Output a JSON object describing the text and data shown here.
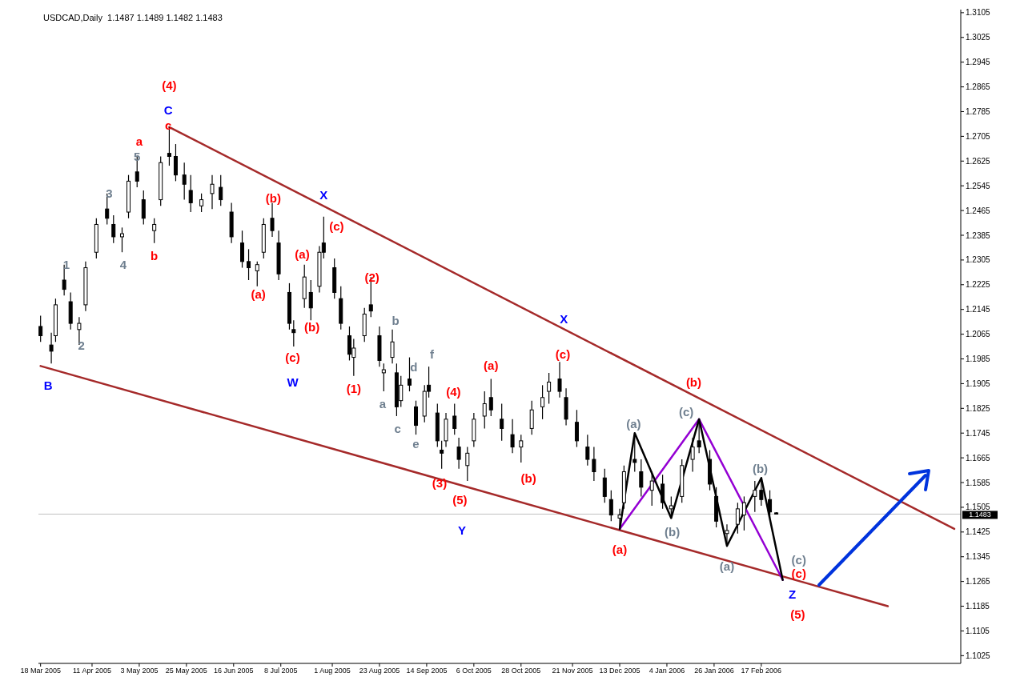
{
  "chart_data": {
    "type": "candlestick",
    "title": "USDCAD,Daily  1.1487 1.1489 1.1482 1.1483",
    "x": [
      "2005-03-18",
      "2005-03-23",
      "2005-03-25",
      "2005-03-29",
      "2005-04-01",
      "2005-04-05",
      "2005-04-08",
      "2005-04-13",
      "2005-04-18",
      "2005-04-21",
      "2005-04-25",
      "2005-04-28",
      "2005-05-02",
      "2005-05-05",
      "2005-05-10",
      "2005-05-13",
      "2005-05-17",
      "2005-05-20",
      "2005-05-24",
      "2005-05-27",
      "2005-06-01",
      "2005-06-06",
      "2005-06-10",
      "2005-06-15",
      "2005-06-20",
      "2005-06-23",
      "2005-06-27",
      "2005-06-30",
      "2005-07-04",
      "2005-07-07",
      "2005-07-12",
      "2005-07-14",
      "2005-07-19",
      "2005-07-22",
      "2005-07-26",
      "2005-07-28",
      "2005-08-02",
      "2005-08-05",
      "2005-08-09",
      "2005-08-11",
      "2005-08-16",
      "2005-08-19",
      "2005-08-23",
      "2005-08-25",
      "2005-08-29",
      "2005-08-31",
      "2005-09-02",
      "2005-09-06",
      "2005-09-09",
      "2005-09-13",
      "2005-09-15",
      "2005-09-19",
      "2005-09-21",
      "2005-09-23",
      "2005-09-27",
      "2005-09-29",
      "2005-10-03",
      "2005-10-06",
      "2005-10-11",
      "2005-10-14",
      "2005-10-19",
      "2005-10-24",
      "2005-10-28",
      "2005-11-02",
      "2005-11-07",
      "2005-11-10",
      "2005-11-15",
      "2005-11-18",
      "2005-11-23",
      "2005-11-28",
      "2005-12-01",
      "2005-12-06",
      "2005-12-09",
      "2005-12-13",
      "2005-12-15",
      "2005-12-20",
      "2005-12-23",
      "2005-12-28",
      "2006-01-02",
      "2006-01-06",
      "2006-01-11",
      "2006-01-16",
      "2006-01-19",
      "2006-01-24",
      "2006-01-27",
      "2006-02-01",
      "2006-02-06",
      "2006-02-09",
      "2006-02-14",
      "2006-02-17",
      "2006-02-21",
      "2006-02-24"
    ],
    "ohlc": [
      [
        1.209,
        1.2125,
        1.204,
        1.206
      ],
      [
        1.203,
        1.207,
        1.197,
        1.201
      ],
      [
        1.206,
        1.218,
        1.204,
        1.216
      ],
      [
        1.224,
        1.229,
        1.219,
        1.221
      ],
      [
        1.217,
        1.22,
        1.208,
        1.21
      ],
      [
        1.208,
        1.212,
        1.203,
        1.21
      ],
      [
        1.216,
        1.23,
        1.214,
        1.228
      ],
      [
        1.233,
        1.244,
        1.231,
        1.242
      ],
      [
        1.247,
        1.252,
        1.242,
        1.244
      ],
      [
        1.242,
        1.245,
        1.236,
        1.238
      ],
      [
        1.238,
        1.241,
        1.233,
        1.239
      ],
      [
        1.246,
        1.258,
        1.244,
        1.256
      ],
      [
        1.259,
        1.264,
        1.254,
        1.256
      ],
      [
        1.25,
        1.253,
        1.242,
        1.244
      ],
      [
        1.24,
        1.244,
        1.236,
        1.242
      ],
      [
        1.25,
        1.264,
        1.248,
        1.262
      ],
      [
        1.265,
        1.2735,
        1.261,
        1.264
      ],
      [
        1.264,
        1.268,
        1.256,
        1.258
      ],
      [
        1.258,
        1.262,
        1.25,
        1.255
      ],
      [
        1.253,
        1.258,
        1.246,
        1.249
      ],
      [
        1.248,
        1.252,
        1.246,
        1.25
      ],
      [
        1.252,
        1.258,
        1.247,
        1.255
      ],
      [
        1.254,
        1.258,
        1.248,
        1.25
      ],
      [
        1.246,
        1.249,
        1.236,
        1.238
      ],
      [
        1.236,
        1.24,
        1.228,
        1.23
      ],
      [
        1.23,
        1.234,
        1.224,
        1.228
      ],
      [
        1.227,
        1.23,
        1.222,
        1.229
      ],
      [
        1.233,
        1.244,
        1.231,
        1.242
      ],
      [
        1.244,
        1.249,
        1.238,
        1.24
      ],
      [
        1.236,
        1.24,
        1.224,
        1.226
      ],
      [
        1.22,
        1.223,
        1.208,
        1.21
      ],
      [
        1.208,
        1.211,
        1.2025,
        1.207
      ],
      [
        1.218,
        1.229,
        1.215,
        1.225
      ],
      [
        1.22,
        1.224,
        1.211,
        1.215
      ],
      [
        1.222,
        1.235,
        1.22,
        1.233
      ],
      [
        1.236,
        1.2445,
        1.231,
        1.233
      ],
      [
        1.228,
        1.231,
        1.218,
        1.22
      ],
      [
        1.218,
        1.222,
        1.208,
        1.21
      ],
      [
        1.206,
        1.209,
        1.198,
        1.2
      ],
      [
        1.199,
        1.205,
        1.193,
        1.202
      ],
      [
        1.206,
        1.215,
        1.204,
        1.213
      ],
      [
        1.216,
        1.225,
        1.212,
        1.214
      ],
      [
        1.206,
        1.209,
        1.196,
        1.198
      ],
      [
        1.194,
        1.197,
        1.188,
        1.195
      ],
      [
        1.199,
        1.208,
        1.197,
        1.204
      ],
      [
        1.194,
        1.197,
        1.18,
        1.183
      ],
      [
        1.185,
        1.193,
        1.183,
        1.19
      ],
      [
        1.192,
        1.199,
        1.188,
        1.19
      ],
      [
        1.183,
        1.185,
        1.174,
        1.177
      ],
      [
        1.18,
        1.19,
        1.178,
        1.188
      ],
      [
        1.19,
        1.196,
        1.186,
        1.188
      ],
      [
        1.181,
        1.184,
        1.17,
        1.172
      ],
      [
        1.169,
        1.172,
        1.163,
        1.168
      ],
      [
        1.172,
        1.181,
        1.17,
        1.179
      ],
      [
        1.18,
        1.184,
        1.174,
        1.176
      ],
      [
        1.17,
        1.173,
        1.163,
        1.166
      ],
      [
        1.164,
        1.17,
        1.159,
        1.168
      ],
      [
        1.172,
        1.181,
        1.17,
        1.179
      ],
      [
        1.18,
        1.188,
        1.176,
        1.184
      ],
      [
        1.186,
        1.192,
        1.18,
        1.182
      ],
      [
        1.179,
        1.184,
        1.172,
        1.176
      ],
      [
        1.174,
        1.179,
        1.168,
        1.17
      ],
      [
        1.17,
        1.174,
        1.165,
        1.172
      ],
      [
        1.176,
        1.185,
        1.174,
        1.182
      ],
      [
        1.183,
        1.19,
        1.179,
        1.186
      ],
      [
        1.188,
        1.194,
        1.184,
        1.191
      ],
      [
        1.192,
        1.1975,
        1.186,
        1.188
      ],
      [
        1.186,
        1.189,
        1.177,
        1.179
      ],
      [
        1.178,
        1.182,
        1.17,
        1.172
      ],
      [
        1.17,
        1.174,
        1.164,
        1.166
      ],
      [
        1.166,
        1.17,
        1.159,
        1.162
      ],
      [
        1.16,
        1.163,
        1.152,
        1.154
      ],
      [
        1.153,
        1.156,
        1.146,
        1.148
      ],
      [
        1.147,
        1.15,
        1.1435,
        1.148
      ],
      [
        1.152,
        1.164,
        1.15,
        1.162
      ],
      [
        1.166,
        1.1745,
        1.162,
        1.165
      ],
      [
        1.162,
        1.166,
        1.154,
        1.157
      ],
      [
        1.156,
        1.162,
        1.151,
        1.159
      ],
      [
        1.158,
        1.161,
        1.15,
        1.152
      ],
      [
        1.15,
        1.154,
        1.147,
        1.151
      ],
      [
        1.154,
        1.166,
        1.152,
        1.164
      ],
      [
        1.166,
        1.173,
        1.162,
        1.17
      ],
      [
        1.172,
        1.179,
        1.168,
        1.17
      ],
      [
        1.166,
        1.169,
        1.156,
        1.158
      ],
      [
        1.154,
        1.157,
        1.144,
        1.146
      ],
      [
        1.142,
        1.145,
        1.138,
        1.143
      ],
      [
        1.145,
        1.152,
        1.142,
        1.15
      ],
      [
        1.148,
        1.154,
        1.143,
        1.152
      ],
      [
        1.154,
        1.159,
        1.149,
        1.156
      ],
      [
        1.156,
        1.16,
        1.151,
        1.153
      ],
      [
        1.153,
        1.156,
        1.147,
        1.149
      ],
      [
        1.1487,
        1.1489,
        1.1482,
        1.1483
      ]
    ],
    "color": "#000000",
    "series": [
      {
        "type": "line",
        "color": "#a52a2a",
        "x": [
          "2005-05-17",
          "2006-05-18"
        ],
        "values": [
          1.2735,
          1.1435
        ]
      },
      {
        "type": "line",
        "color": "#a52a2a",
        "x": [
          "2005-03-18",
          "2006-04-17"
        ],
        "values": [
          1.1962,
          1.1185
        ]
      },
      {
        "type": "line",
        "color": "#9400d3",
        "x": [
          "2005-12-13",
          "2006-01-19",
          "2006-02-27"
        ],
        "values": [
          1.1435,
          1.179,
          1.127
        ]
      },
      {
        "type": "line",
        "color": "#000000",
        "x": [
          "2005-12-13",
          "2005-12-20",
          "2006-01-06",
          "2006-01-19",
          "2006-02-01",
          "2006-02-17",
          "2006-02-27"
        ],
        "values": [
          1.1435,
          1.1745,
          1.147,
          1.179,
          1.138,
          1.16,
          1.127
        ]
      }
    ],
    "xlim": [
      "2005-03-17",
      "2006-05-21"
    ],
    "xticks": [
      {
        "value": "2005-03-18",
        "label": "18 Mar 2005"
      },
      {
        "value": "2005-04-11",
        "label": "11 Apr 2005"
      },
      {
        "value": "2005-05-03",
        "label": "3 May 2005"
      },
      {
        "value": "2005-05-25",
        "label": "25 May 2005"
      },
      {
        "value": "2005-06-16",
        "label": "16 Jun 2005"
      },
      {
        "value": "2005-07-08",
        "label": "8 Jul 2005"
      },
      {
        "value": "2005-08-01",
        "label": "1 Aug 2005"
      },
      {
        "value": "2005-08-23",
        "label": "23 Aug 2005"
      },
      {
        "value": "2005-09-14",
        "label": "14 Sep 2005"
      },
      {
        "value": "2005-10-06",
        "label": "6 Oct 2005"
      },
      {
        "value": "2005-10-28",
        "label": "28 Oct 2005"
      },
      {
        "value": "2005-11-21",
        "label": "21 Nov 2005"
      },
      {
        "value": "2005-12-13",
        "label": "13 Dec 2005"
      },
      {
        "value": "2006-01-04",
        "label": "4 Jan 2006"
      },
      {
        "value": "2006-01-26",
        "label": "26 Jan 2006"
      },
      {
        "value": "2006-02-17",
        "label": "17 Feb 2006"
      }
    ],
    "ylim": [
      1.1,
      1.3115
    ],
    "yticks": [
      1.1025,
      1.1105,
      1.1185,
      1.1265,
      1.1345,
      1.1425,
      1.1505,
      1.1585,
      1.1665,
      1.1745,
      1.1825,
      1.1905,
      1.1985,
      1.2065,
      1.2145,
      1.2225,
      1.2305,
      1.2385,
      1.2465,
      1.2545,
      1.2625,
      1.2705,
      1.2785,
      1.2865,
      1.2945,
      1.3025,
      1.3105
    ],
    "ref_lines": [
      {
        "axis": "y",
        "value": 1.1483,
        "label": "1.1483",
        "color": "#c0c0c0"
      }
    ],
    "annotations": [
      "(4)",
      "C",
      "c",
      "a",
      "5",
      "3",
      "1",
      "2",
      "4",
      "b",
      "B",
      "(b)",
      "X",
      "(c)",
      "(a)",
      "(a)",
      "(b)",
      "(c)",
      "W",
      "(2)",
      "(1)",
      "b",
      "d",
      "f",
      "a",
      "c",
      "e",
      "(4)",
      "(3)",
      "(5)",
      "Y",
      "(a)",
      "(b)",
      "X",
      "(c)",
      "(b)",
      "(a)",
      "(a)",
      "(c)",
      "(b)",
      "(a)",
      "(b)",
      "(c)",
      "(c)",
      "Z",
      "(5)"
    ],
    "grid": false,
    "legend": false
  }
}
